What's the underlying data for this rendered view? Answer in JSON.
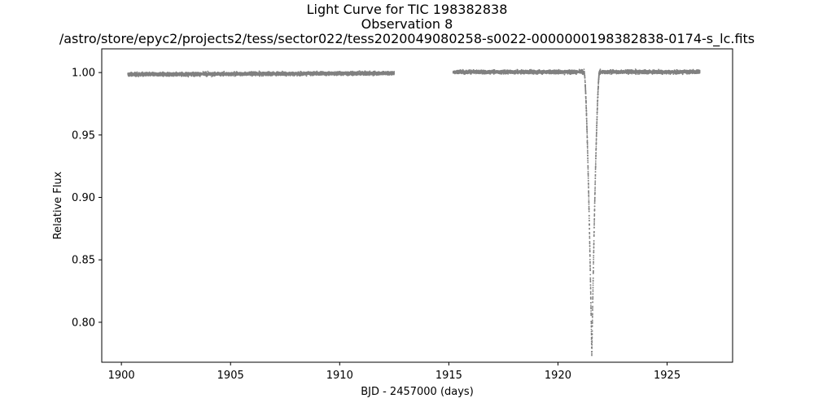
{
  "chart_data": {
    "type": "scatter",
    "title_lines": [
      "Light Curve for TIC 198382838",
      "Observation 8",
      "/astro/store/epyc2/projects2/tess/sector022/tess2020049080258-s0022-0000000198382838-0174-s_lc.fits"
    ],
    "xlabel": "BJD - 2457000 (days)",
    "ylabel": "Relative Flux",
    "xlim": [
      1899.1,
      1928.0
    ],
    "ylim": [
      0.768,
      1.019
    ],
    "xticks": [
      1900,
      1905,
      1910,
      1915,
      1920,
      1925
    ],
    "xtick_labels": [
      "1900",
      "1905",
      "1910",
      "1915",
      "1920",
      "1925"
    ],
    "yticks": [
      0.8,
      0.85,
      0.9,
      0.95,
      1.0
    ],
    "ytick_labels": [
      "0.80",
      "0.85",
      "0.90",
      "0.95",
      "1.00"
    ],
    "grid": false,
    "marker_color": "#808080",
    "series": [
      {
        "segments": [
          {
            "x_start": 1900.3,
            "x_end": 1912.5,
            "flux_start": 0.9985,
            "flux_end": 0.9995,
            "scatter": 0.0012
          },
          {
            "x_start": 1915.2,
            "x_end": 1926.5,
            "flux_start": 1.0005,
            "flux_end": 1.0005,
            "scatter": 0.0012
          }
        ],
        "eclipse": {
          "center": 1921.55,
          "min_flux": 0.773,
          "ingress_start": 1921.25,
          "egress_end": 1921.95
        }
      }
    ]
  }
}
